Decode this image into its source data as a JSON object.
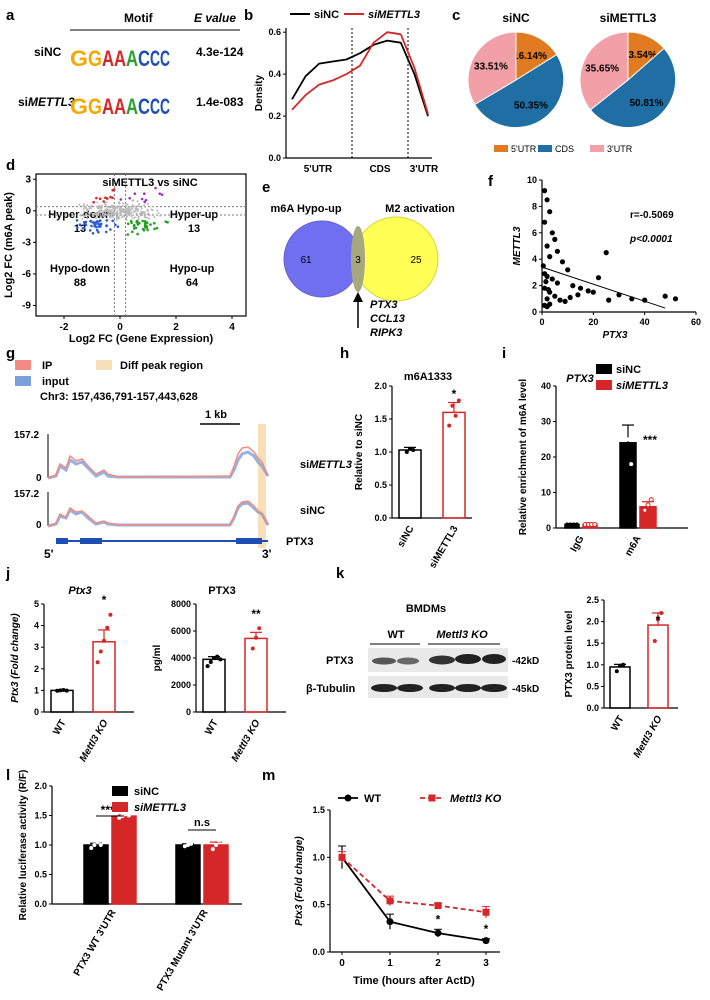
{
  "colors": {
    "black": "#000000",
    "red": "#d62728",
    "orange": "#e07b22",
    "blue": "#1f6fa5",
    "pink": "#f2a0a7",
    "venn_blue": "#6f6ff0",
    "venn_yellow": "#ffff55",
    "venn_overlap": "#a8a880",
    "highlight": "#f9dfb8"
  },
  "panels": {
    "a": "a",
    "b": "b",
    "c": "c",
    "d": "d",
    "e": "e",
    "f": "f",
    "g": "g",
    "h": "h",
    "i": "i",
    "j": "j",
    "k": "k",
    "l": "l",
    "m": "m"
  },
  "panel_a": {
    "header_motif": "Motif",
    "header_evalue": "E value",
    "rows": [
      {
        "label": "siNC",
        "evalue": "4.3e-124"
      },
      {
        "label_prefix": "si",
        "label_gene": "METTL3",
        "evalue": "1.4e-083"
      }
    ]
  },
  "panel_c": {
    "legend": [
      "5'UTR",
      "CDS",
      "3'UTR"
    ]
  },
  "panel_d": {
    "title": "siMETTL3 vs siNC",
    "quadrants": [
      {
        "name": "Hyper-down",
        "count": "13"
      },
      {
        "name": "Hyper-up",
        "count": "13"
      },
      {
        "name": "Hypo-down",
        "count": "88"
      },
      {
        "name": "Hypo-up",
        "count": "64"
      }
    ]
  },
  "panel_e": {
    "left_title": "m6A Hypo-up",
    "right_title": "M2 activation",
    "left": "61",
    "overlap": "3",
    "right": "25",
    "genes": [
      "PTX3",
      "CCL13",
      "RIPK3"
    ]
  },
  "panel_f": {
    "r": "r=-0.5069",
    "p": "p<0.0001"
  },
  "panel_g": {
    "legend": [
      "IP",
      "input",
      "Diff peak region"
    ],
    "coords": "Chr3: 157,436,791-157,443,628",
    "scale": "1 kb",
    "tracks": [
      {
        "max": "157.2",
        "min": "0",
        "label": "siMETTL3"
      },
      {
        "max": "157.2",
        "min": "0",
        "label": "siNC"
      }
    ],
    "gene": "PTX3",
    "five": "5'",
    "three": "3'"
  },
  "panel_h": {
    "title": "m6A1333",
    "sig": "*"
  },
  "panel_i": {
    "title": "PTX3",
    "sig": "***"
  },
  "panel_j": {
    "left_title": "Ptx3",
    "right_title": "PTX3",
    "left_sig": "*",
    "right_sig": "**"
  },
  "panel_k": {
    "blot_title": "BMDMs",
    "groups": [
      "WT",
      "Mettl3 KO"
    ],
    "bands": [
      {
        "name": "PTX3",
        "size": "-42kD"
      },
      {
        "name": "β-Tubulin",
        "size": "-45kD"
      }
    ],
    "sig": "*"
  },
  "panel_l": {
    "sig1": "****",
    "sig2": "n.s"
  },
  "panel_m": {
    "sig": "*"
  },
  "chart_data": [
    {
      "panel": "b",
      "type": "line",
      "xlabel": "",
      "ylabel": "Density",
      "categories": [
        "5'UTR",
        "CDS",
        "3'UTR"
      ],
      "ylim": [
        0,
        0.6
      ],
      "yticks": [
        0.0,
        0.2,
        0.4,
        0.6
      ],
      "legend": [
        "siNC",
        "siMETTL3"
      ],
      "series": [
        {
          "name": "siNC",
          "x": [
            0,
            0.1,
            0.2,
            0.3,
            0.4,
            0.5,
            0.6,
            0.7,
            0.8,
            0.9,
            1.0
          ],
          "values": [
            0.28,
            0.39,
            0.45,
            0.46,
            0.47,
            0.5,
            0.54,
            0.56,
            0.55,
            0.4,
            0.2
          ]
        },
        {
          "name": "siMETTL3",
          "x": [
            0,
            0.1,
            0.2,
            0.3,
            0.4,
            0.5,
            0.6,
            0.7,
            0.8,
            0.9,
            1.0
          ],
          "values": [
            0.23,
            0.3,
            0.35,
            0.37,
            0.4,
            0.44,
            0.55,
            0.6,
            0.59,
            0.43,
            0.21
          ]
        }
      ]
    },
    {
      "panel": "c",
      "type": "pie",
      "titles": [
        "siNC",
        "siMETTL3"
      ],
      "categories": [
        "5'UTR",
        "CDS",
        "3'UTR"
      ],
      "series": [
        {
          "name": "siNC",
          "values": [
            16.14,
            50.35,
            33.51
          ],
          "labels": [
            "16.14%",
            "50.35%",
            "33.51%"
          ]
        },
        {
          "name": "siMETTL3",
          "values": [
            13.54,
            50.81,
            35.65
          ],
          "labels": [
            "13.54%",
            "50.81%",
            "35.65%"
          ]
        }
      ]
    },
    {
      "panel": "d",
      "type": "scatter",
      "xlabel": "Log2 FC (Gene Expression)",
      "ylabel": "Log2 FC (m6A peak)",
      "xticks": [
        "-2",
        "0",
        "2",
        "4"
      ],
      "yticks": [
        "3",
        "0",
        "-3",
        "-6",
        "-9"
      ],
      "xlim": [
        -3,
        4.5
      ],
      "ylim": [
        -10,
        3.5
      ]
    },
    {
      "panel": "f",
      "type": "scatter",
      "xlabel": "PTX3",
      "ylabel": "METTL3",
      "xlim": [
        0,
        60
      ],
      "ylim": [
        0,
        10
      ],
      "xticks": [
        "0",
        "20",
        "40",
        "60"
      ],
      "yticks": [
        "0",
        "2",
        "4",
        "6",
        "8",
        "10"
      ],
      "x": [
        1,
        2,
        3,
        1,
        4,
        5,
        2,
        6,
        3,
        8,
        10,
        1,
        2,
        4,
        6,
        12,
        15,
        18,
        20,
        25,
        30,
        35,
        40,
        48,
        52,
        1,
        3,
        5,
        2,
        7,
        9,
        11,
        14,
        3,
        1,
        2,
        0.5,
        1.5,
        2.5,
        22,
        26
      ],
      "y": [
        9.2,
        8.5,
        7.6,
        6.8,
        6.0,
        5.5,
        5.0,
        4.6,
        4.2,
        3.8,
        3.2,
        2.9,
        2.7,
        2.5,
        2.2,
        2.0,
        1.8,
        1.6,
        1.5,
        4.5,
        1.3,
        1.0,
        0.9,
        1.2,
        1.0,
        1.8,
        1.5,
        1.2,
        1.0,
        0.9,
        0.8,
        1.1,
        1.3,
        0.6,
        0.5,
        0.4,
        3.5,
        2.3,
        1.7,
        2.6,
        0.9
      ]
    },
    {
      "panel": "h",
      "type": "bar",
      "ylabel": "Relative to siNC",
      "categories": [
        "siNC",
        "siMETTL3"
      ],
      "values": [
        1.03,
        1.6
      ],
      "ylim": [
        0,
        2.0
      ],
      "yticks": [
        "0.0",
        "0.5",
        "1.0",
        "1.5",
        "2.0"
      ]
    },
    {
      "panel": "i",
      "type": "bar",
      "ylabel": "Relative enrichment of m6A level",
      "categories": [
        "IgG",
        "m6A"
      ],
      "legend": [
        "siNC",
        "siMETTL3"
      ],
      "series": [
        {
          "name": "siNC",
          "values": [
            1,
            24
          ]
        },
        {
          "name": "siMETTL3",
          "values": [
            1,
            6
          ]
        }
      ],
      "ylim": [
        0,
        40
      ],
      "yticks": [
        "0",
        "10",
        "20",
        "30",
        "40"
      ]
    },
    {
      "panel": "j-left",
      "type": "bar",
      "ylabel": "Ptx3 (Fold change)",
      "categories": [
        "WT",
        "Mettl3 KO"
      ],
      "values": [
        1,
        3.25
      ],
      "ylim": [
        0,
        5
      ],
      "yticks": [
        "0",
        "1",
        "2",
        "3",
        "4",
        "5"
      ]
    },
    {
      "panel": "j-right",
      "type": "bar",
      "ylabel": "pg/ml",
      "categories": [
        "WT",
        "Mettl3 KO"
      ],
      "values": [
        3900,
        5450
      ],
      "ylim": [
        0,
        8000
      ],
      "yticks": [
        "0",
        "2000",
        "4000",
        "6000",
        "8000"
      ]
    },
    {
      "panel": "k",
      "type": "bar",
      "ylabel": "PTX3 protein level",
      "categories": [
        "WT",
        "Mettl3 KO"
      ],
      "values": [
        0.95,
        1.92
      ],
      "ylim": [
        0,
        2.5
      ],
      "yticks": [
        "0.0",
        "0.5",
        "1.0",
        "1.5",
        "2.0",
        "2.5"
      ]
    },
    {
      "panel": "l",
      "type": "bar",
      "ylabel": "Relative luciferase activity (R/F)",
      "categories": [
        "PTX3 WT 3'UTR",
        "PTX3 Mutant 3'UTR"
      ],
      "legend": [
        "siNC",
        "siMETTL3"
      ],
      "series": [
        {
          "name": "siNC",
          "values": [
            1.0,
            1.0
          ]
        },
        {
          "name": "siMETTL3",
          "values": [
            1.49,
            1.0
          ]
        }
      ],
      "ylim": [
        0,
        2.0
      ],
      "yticks": [
        "0.0",
        "0.5",
        "1.0",
        "1.5",
        "2.0"
      ]
    },
    {
      "panel": "m",
      "type": "line",
      "xlabel": "Time (hours after ActD)",
      "ylabel": "Ptx3 (Fold change)",
      "x": [
        0,
        1,
        2,
        3
      ],
      "xticks": [
        "0",
        "1",
        "2",
        "3"
      ],
      "ylim": [
        0,
        1.5
      ],
      "yticks": [
        "0.0",
        "0.5",
        "1.0",
        "1.5"
      ],
      "legend": [
        "WT",
        "Mettl3 KO"
      ],
      "series": [
        {
          "name": "WT",
          "values": [
            1.0,
            0.32,
            0.2,
            0.12
          ]
        },
        {
          "name": "Mettl3 KO",
          "values": [
            1.0,
            0.54,
            0.49,
            0.42
          ]
        }
      ]
    }
  ]
}
